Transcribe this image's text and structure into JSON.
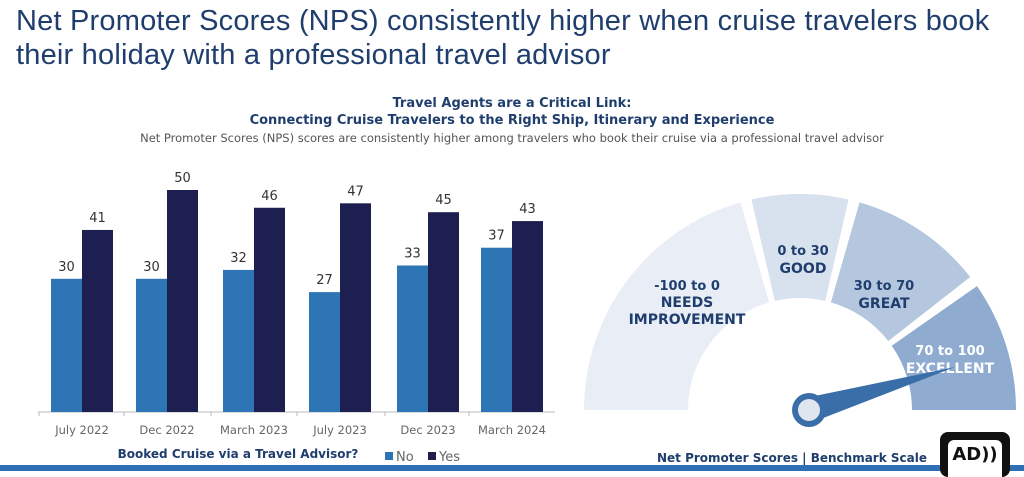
{
  "header": {
    "title": "Net Promoter Scores (NPS) consistently higher when cruise travelers book their holiday with a professional travel advisor",
    "subtitle_1": "Travel Agents are a Critical Link:",
    "subtitle_2": "Connecting Cruise Travelers to the Right Ship, Itinerary and Experience",
    "subtitle_3": "Net Promoter Scores (NPS) scores are consistently higher among travelers who book their cruise via a professional travel advisor"
  },
  "chart_data": [
    {
      "type": "bar",
      "categories": [
        "July 2022",
        "Dec 2022",
        "March 2023",
        "July 2023",
        "Dec 2023",
        "March 2024"
      ],
      "series": [
        {
          "name": "No",
          "values": [
            30,
            30,
            32,
            27,
            33,
            37
          ],
          "color": "#2e75b6"
        },
        {
          "name": "Yes",
          "values": [
            41,
            50,
            46,
            47,
            45,
            43
          ],
          "color": "#1c1f4f"
        }
      ],
      "xlabel": "Booked Cruise via a Travel Advisor?",
      "legend": "bottom-right",
      "ylim": [
        0,
        50
      ],
      "grid": false
    },
    {
      "type": "gauge",
      "title": "Net Promoter Scores |  Benchmark Scale",
      "segments": [
        {
          "range": "-100 to 0",
          "label": "NEEDS IMPROVEMENT",
          "color": "#e9eef6"
        },
        {
          "range": "0 to 30",
          "label": "GOOD",
          "color": "#d8e1ee"
        },
        {
          "range": "30 to 70",
          "label": "GREAT",
          "color": "#b5c7df"
        },
        {
          "range": "70 to 100",
          "label": "EXCELLENT",
          "color": "#8fabd0"
        }
      ],
      "needle_color": "#3a6ea8"
    }
  ],
  "logo": {
    "text": "AD"
  }
}
